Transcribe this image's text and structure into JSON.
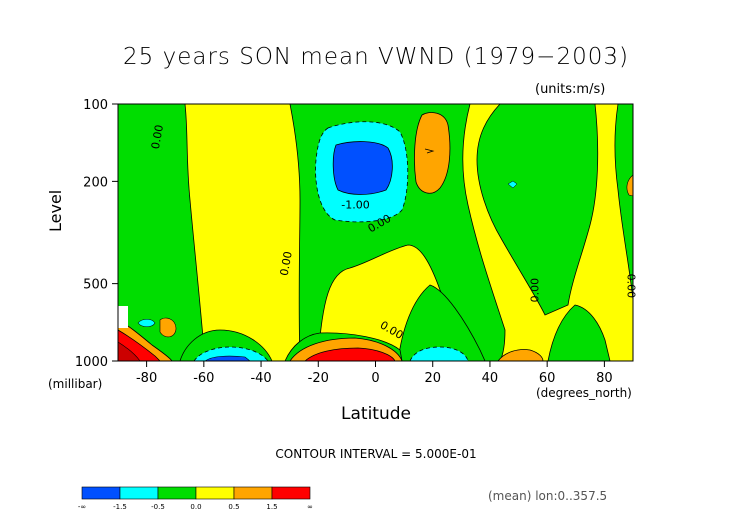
{
  "header": {
    "title": "25 years SON mean VWND  (1979−2003)",
    "units": "(units:m/s)"
  },
  "axes": {
    "ylabel": "Level",
    "y_units": "(millibar)",
    "xlabel": "Latitude",
    "x_units": "(degrees_north)"
  },
  "footer": {
    "contour_interval": "CONTOUR INTERVAL = 5.000E-01",
    "mean_info": "(mean) lon:0..357.5"
  },
  "colors": {
    "dark_blue": "#0050ff",
    "cyan": "#00ffff",
    "green": "#00dd00",
    "yellow": "#ffff00",
    "orange": "#ffa500",
    "red": "#ff0000",
    "dark_red": "#cc0000"
  },
  "chart_data": {
    "type": "heatmap",
    "title": "25 years SON mean VWND  (1979−2003)",
    "xlabel": "Latitude",
    "ylabel": "Level",
    "xlim": [
      -90,
      90
    ],
    "ylim": [
      1000,
      100
    ],
    "y_scale": "log",
    "x_ticks": [
      -80,
      -60,
      -40,
      -20,
      0,
      20,
      40,
      60,
      80
    ],
    "x_tick_labels": [
      "-80",
      "-60",
      "-40",
      "-20",
      "0",
      "20",
      "40",
      "60",
      "80"
    ],
    "y_ticks": [
      1000,
      500,
      200,
      100
    ],
    "y_tick_labels": [
      "1000",
      "500",
      "200",
      "100"
    ],
    "contour_interval": 0.5,
    "contour_labels": [
      {
        "text": "0.00",
        "lat": -75,
        "lev": 135,
        "rotate": -80
      },
      {
        "text": "-1.00",
        "lat": -7,
        "lev": 255,
        "rotate": 0
      },
      {
        "text": "0.00",
        "lat": 2,
        "lev": 300,
        "rotate": -30
      },
      {
        "text": "0.00",
        "lat": -30,
        "lev": 420,
        "rotate": -80
      },
      {
        "text": "0.00",
        "lat": 5,
        "lev": 780,
        "rotate": 30
      },
      {
        "text": "0.00",
        "lat": 57,
        "lev": 530,
        "rotate": -90
      },
      {
        "text": "0.00",
        "lat": 88,
        "lev": 510,
        "rotate": 90
      }
    ],
    "colorbar": {
      "colors": [
        "#0050ff",
        "#00ffff",
        "#00dd00",
        "#ffff00",
        "#ffa500",
        "#ff0000"
      ],
      "labels": [
        "-∞",
        "-1.5",
        "-0.5",
        "0.0",
        "0.5",
        "1.5",
        "∞"
      ]
    }
  }
}
